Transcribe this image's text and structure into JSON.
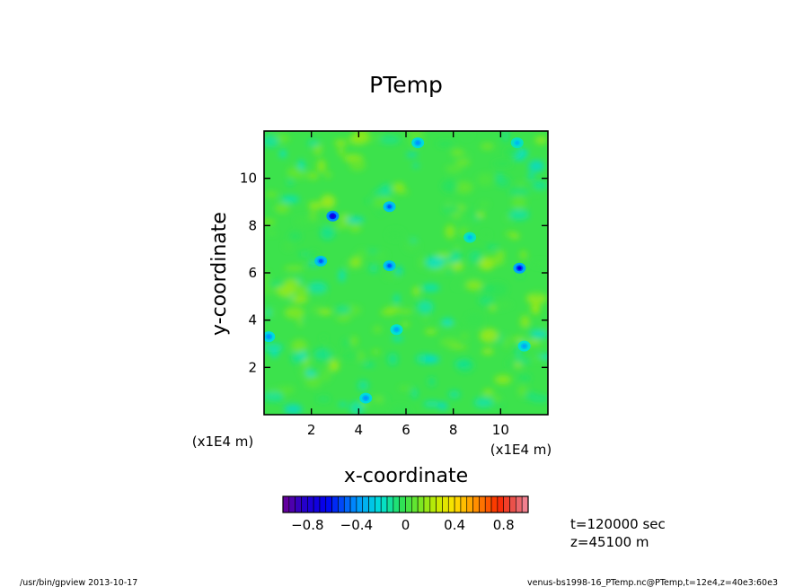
{
  "chart_data": {
    "type": "heatmap",
    "title": "PTemp",
    "xlabel": "x-coordinate",
    "ylabel": "y-coordinate",
    "x_unit": "(x1E4 m)",
    "y_unit": "(x1E4 m)",
    "xlim": [
      0,
      12
    ],
    "ylim": [
      0,
      12
    ],
    "x_ticks": [
      "2",
      "4",
      "6",
      "8",
      "10"
    ],
    "y_ticks": [
      "2",
      "4",
      "6",
      "8",
      "10"
    ],
    "x_tick_values": [
      2,
      4,
      6,
      8,
      10
    ],
    "y_tick_values": [
      2,
      4,
      6,
      8,
      10
    ],
    "colorbar": {
      "range": [
        -1.0,
        1.0
      ],
      "ticks": [
        "−0.8",
        "−0.4",
        "0",
        "0.4",
        "0.8"
      ],
      "tick_values": [
        -0.8,
        -0.4,
        0,
        0.4,
        0.8
      ],
      "levels": 40
    },
    "field_mean": 0.0,
    "cold_spots": [
      {
        "x": 2.9,
        "y": 8.4,
        "value": -0.75
      },
      {
        "x": 10.8,
        "y": 6.2,
        "value": -0.65
      },
      {
        "x": 5.3,
        "y": 6.3,
        "value": -0.5
      },
      {
        "x": 2.4,
        "y": 6.5,
        "value": -0.5
      },
      {
        "x": 5.3,
        "y": 8.8,
        "value": -0.5
      },
      {
        "x": 6.5,
        "y": 11.5,
        "value": -0.4
      },
      {
        "x": 4.3,
        "y": 0.7,
        "value": -0.4
      },
      {
        "x": 5.6,
        "y": 3.6,
        "value": -0.35
      },
      {
        "x": 0.2,
        "y": 3.3,
        "value": -0.4
      },
      {
        "x": 11.0,
        "y": 2.9,
        "value": -0.35
      },
      {
        "x": 10.7,
        "y": 11.5,
        "value": -0.3
      },
      {
        "x": 8.7,
        "y": 7.5,
        "value": -0.3
      }
    ]
  },
  "annotation": {
    "time": "t=120000 sec",
    "height": "z=45100 m"
  },
  "footer": {
    "left": "/usr/bin/gpview   2013-10-17",
    "right": "venus-bs1998-16_PTemp.nc@PTemp,t=12e4,z=40e3:60e3"
  }
}
